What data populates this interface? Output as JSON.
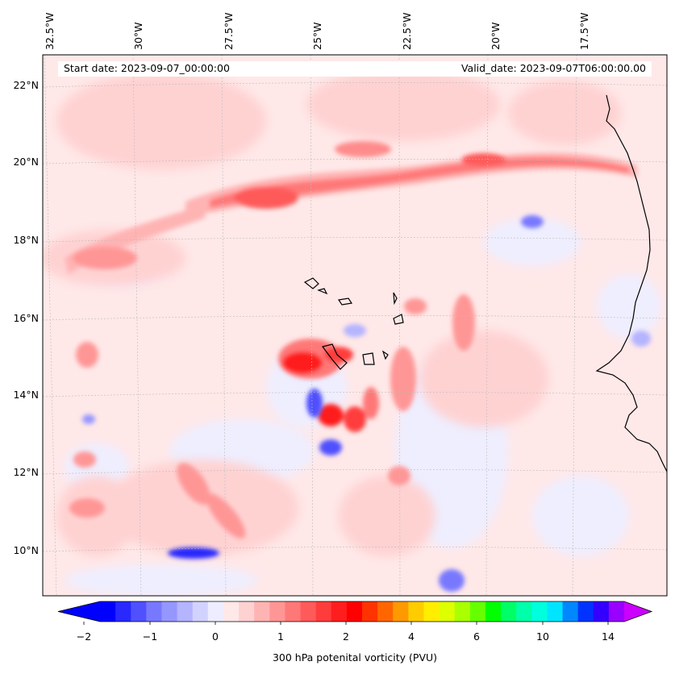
{
  "header": {
    "start_date": "Start date: 2023-09-07_00:00:00",
    "valid_date": "Valid_date: 2023-09-07T06:00:00.00"
  },
  "map": {
    "lon_labels": [
      "32.5°W",
      "30°W",
      "27.5°W",
      "25°W",
      "22.5°W",
      "20°W",
      "17.5°W"
    ],
    "lat_labels": [
      "22°N",
      "20°N",
      "18°N",
      "16°N",
      "14°N",
      "12°N",
      "10°N"
    ],
    "extent": {
      "lon_min": -33.0,
      "lon_max": -15.0,
      "lat_min": 8.9,
      "lat_max": 22.8
    },
    "field": "300 hPa potential vorticity",
    "features": [
      {
        "name": "pv-band-north",
        "color": "#ff3a3a",
        "intensity": "high"
      },
      {
        "name": "cyclone-core",
        "color": "#ff0000",
        "intensity": "high"
      },
      {
        "name": "negative-pv-core",
        "color": "#1a1aff",
        "intensity": "low"
      }
    ]
  },
  "colorbar": {
    "ticks": [
      "−2",
      "−1",
      "0",
      "1",
      "2",
      "4",
      "6",
      "10",
      "14"
    ],
    "label": "300 hPa potenital vorticity (PVU)",
    "colors": [
      "#0000ff",
      "#2828ff",
      "#5050ff",
      "#7878ff",
      "#9696ff",
      "#b4b4ff",
      "#d2d2ff",
      "#ededff",
      "#ffe8e8",
      "#ffd2d2",
      "#ffb4b4",
      "#ff9696",
      "#ff7878",
      "#ff5a5a",
      "#ff3c3c",
      "#ff1e1e",
      "#ff0000",
      "#ff3300",
      "#ff6600",
      "#ff9900",
      "#ffcc00",
      "#ffee00",
      "#ddff00",
      "#aaff00",
      "#66ff00",
      "#00ff00",
      "#00ff66",
      "#00ffaa",
      "#00ffdd",
      "#00e5ff",
      "#0088ff",
      "#0033ff",
      "#3300ff",
      "#9900ff"
    ],
    "extend_low_color": "#0000ff",
    "extend_high_color": "#cc00ff"
  }
}
